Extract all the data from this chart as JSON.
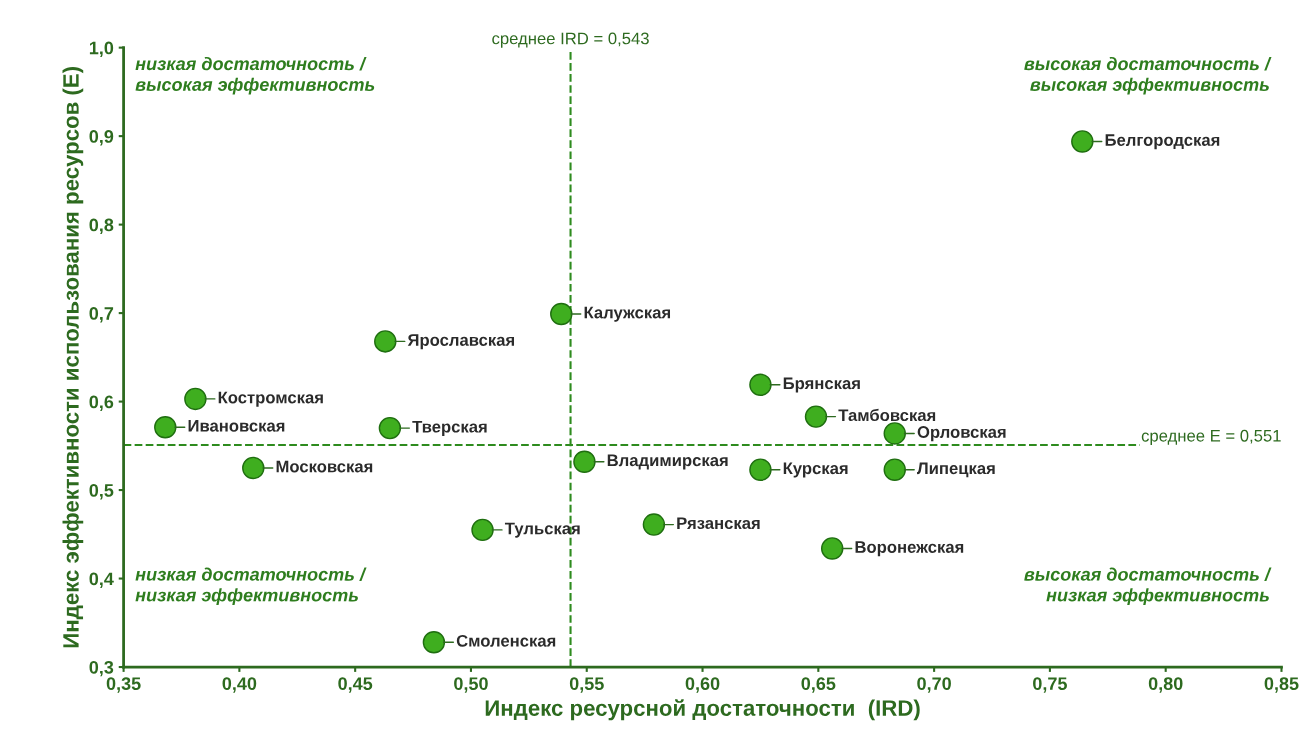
{
  "chart_data": {
    "type": "scatter",
    "xlabel": "Индекс ресурсной достаточности  (IRD)",
    "ylabel": "Индекс эффективности использования ресурсов (E)",
    "xlim": [
      0.35,
      0.85
    ],
    "ylim": [
      0.3,
      1.0
    ],
    "xticks": [
      {
        "value": 0.35,
        "label": "0,35"
      },
      {
        "value": 0.4,
        "label": "0,40"
      },
      {
        "value": 0.45,
        "label": "0,45"
      },
      {
        "value": 0.5,
        "label": "0,50"
      },
      {
        "value": 0.55,
        "label": "0,55"
      },
      {
        "value": 0.6,
        "label": "0,60"
      },
      {
        "value": 0.65,
        "label": "0,65"
      },
      {
        "value": 0.7,
        "label": "0,70"
      },
      {
        "value": 0.75,
        "label": "0,75"
      },
      {
        "value": 0.8,
        "label": "0,80"
      },
      {
        "value": 0.85,
        "label": "0,85"
      }
    ],
    "yticks": [
      {
        "value": 0.3,
        "label": "0,3"
      },
      {
        "value": 0.4,
        "label": "0,4"
      },
      {
        "value": 0.5,
        "label": "0,5"
      },
      {
        "value": 0.6,
        "label": "0,6"
      },
      {
        "value": 0.7,
        "label": "0,7"
      },
      {
        "value": 0.8,
        "label": "0,8"
      },
      {
        "value": 0.9,
        "label": "0,9"
      },
      {
        "value": 1.0,
        "label": "1,0"
      }
    ],
    "grid": false,
    "legend": false,
    "marker": "circle",
    "series": [
      {
        "color": "#3fae1f",
        "x": [
          0.764,
          0.539,
          0.463,
          0.381,
          0.368,
          0.465,
          0.406,
          0.549,
          0.505,
          0.484,
          0.625,
          0.649,
          0.683,
          0.625,
          0.683,
          0.579,
          0.656
        ],
        "values": [
          0.894,
          0.699,
          0.668,
          0.603,
          0.571,
          0.57,
          0.525,
          0.532,
          0.455,
          0.328,
          0.619,
          0.583,
          0.564,
          0.523,
          0.523,
          0.461,
          0.434
        ]
      }
    ],
    "ref_lines": [
      {
        "axis": "x",
        "value": 0.543,
        "label": "среднее IRD = 0,543",
        "color": "#2e8b1e",
        "line_style": "dashed"
      },
      {
        "axis": "y",
        "value": 0.551,
        "label": "среднее E = 0,551",
        "color": "#2e8b1e",
        "line_style": "dashed"
      }
    ],
    "annotations": [
      "низкая достаточность /\nвысокая эффективность",
      "высокая достаточность /\nвысокая эффективность",
      "низкая достаточность /\nнизкая эффективность",
      "высокая достаточность /\nнизкая эффективность",
      {
        "text": "Белгородская",
        "x": 0.764,
        "y": 0.894
      },
      {
        "text": "Калужская",
        "x": 0.539,
        "y": 0.699
      },
      {
        "text": "Ярославская",
        "x": 0.463,
        "y": 0.668
      },
      {
        "text": "Костромская",
        "x": 0.381,
        "y": 0.603
      },
      {
        "text": "Ивановская",
        "x": 0.368,
        "y": 0.571
      },
      {
        "text": "Тверская",
        "x": 0.465,
        "y": 0.57
      },
      {
        "text": "Московская",
        "x": 0.406,
        "y": 0.525
      },
      {
        "text": "Владимирская",
        "x": 0.549,
        "y": 0.532
      },
      {
        "text": "Тульская",
        "x": 0.505,
        "y": 0.455
      },
      {
        "text": "Смоленская",
        "x": 0.484,
        "y": 0.328
      },
      {
        "text": "Брянская",
        "x": 0.625,
        "y": 0.619
      },
      {
        "text": "Тамбовская",
        "x": 0.649,
        "y": 0.583
      },
      {
        "text": "Орловская",
        "x": 0.683,
        "y": 0.564
      },
      {
        "text": "Курская",
        "x": 0.625,
        "y": 0.523
      },
      {
        "text": "Липецкая",
        "x": 0.683,
        "y": 0.523
      },
      {
        "text": "Рязанская",
        "x": 0.579,
        "y": 0.461
      },
      {
        "text": "Воронежская",
        "x": 0.656,
        "y": 0.434
      }
    ]
  }
}
